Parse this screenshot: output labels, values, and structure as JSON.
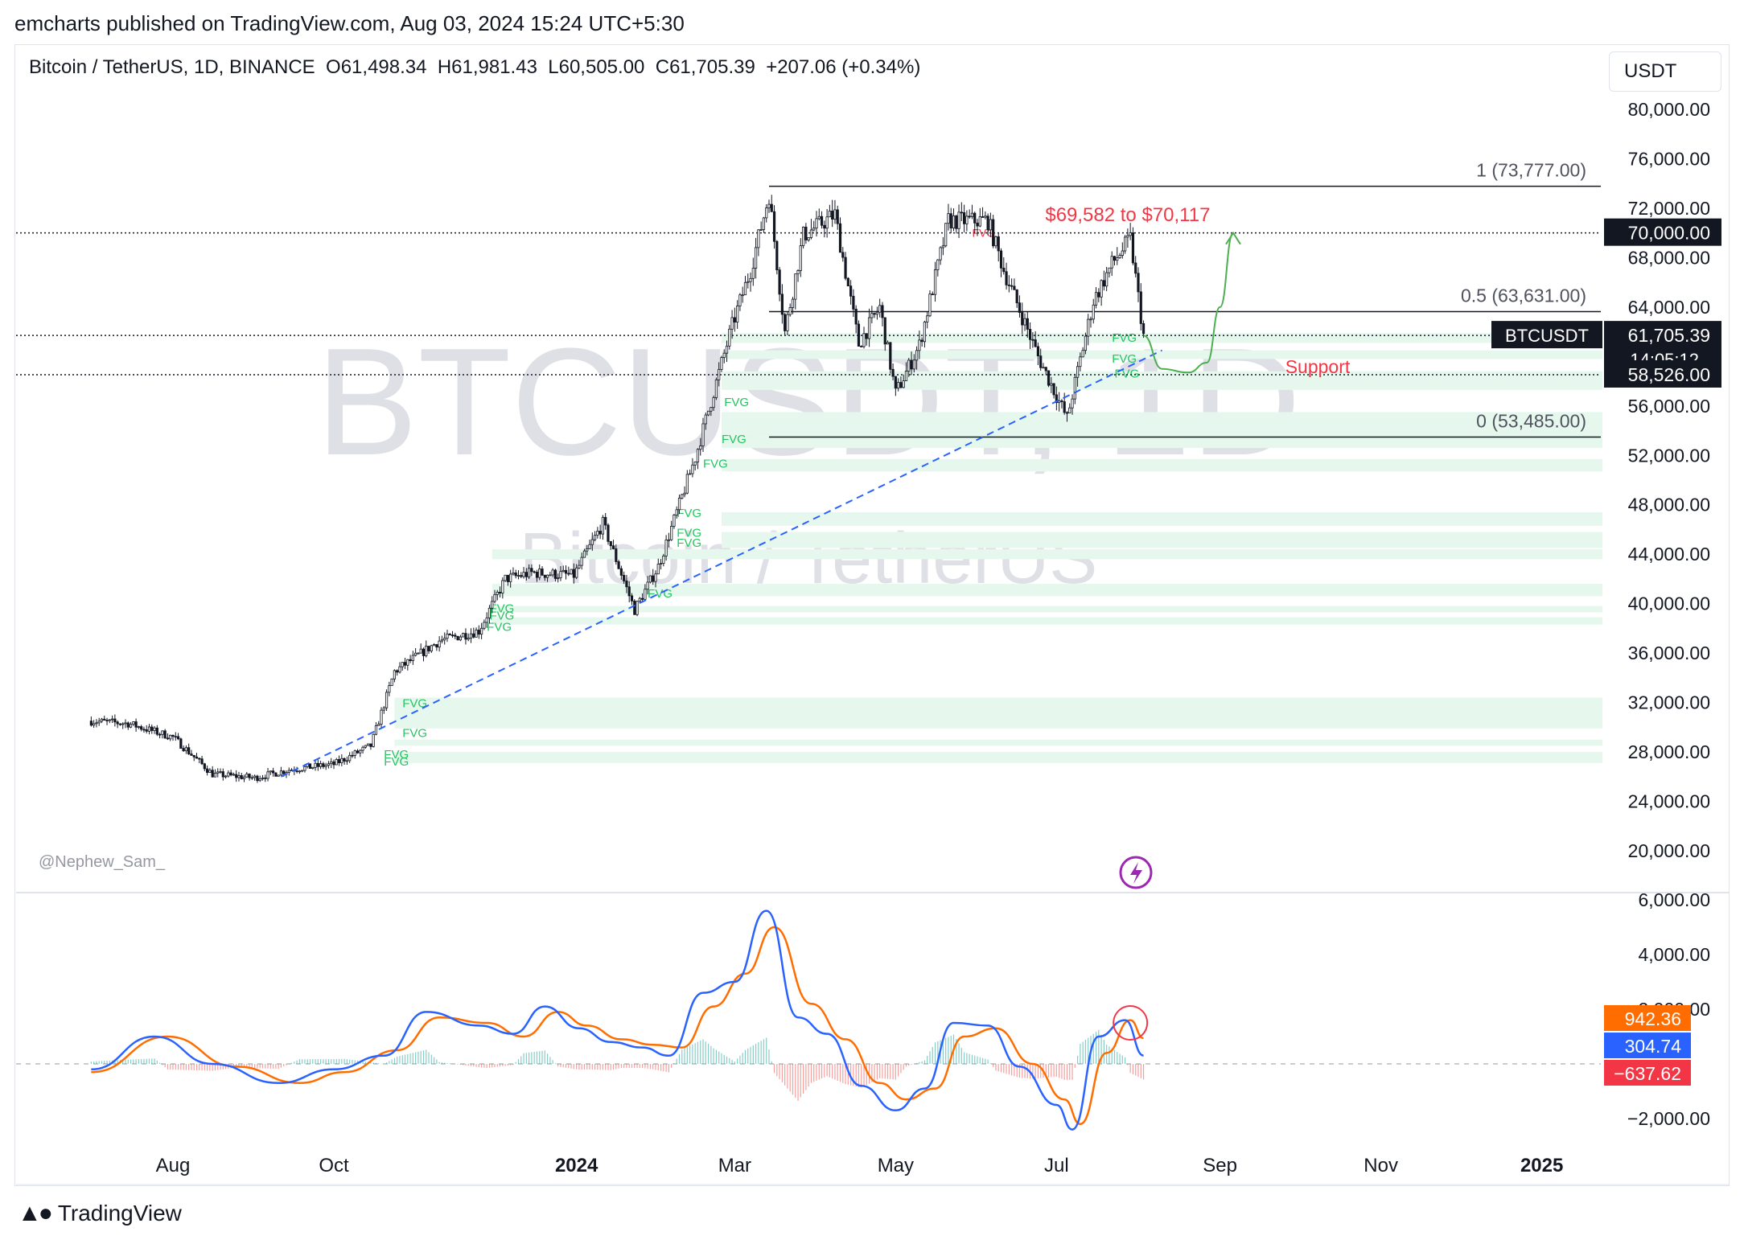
{
  "publisher": "emcharts published on TradingView.com, Aug 03, 2024 15:24 UTC+5:30",
  "header": {
    "symbol": "Bitcoin / TetherUS, 1D, BINANCE",
    "open": "O61,498.34",
    "high": "H61,981.43",
    "low": "L60,505.00",
    "close": "C61,705.39",
    "change": "+207.06 (+0.34%)"
  },
  "currency": "USDT",
  "watermark": {
    "line1": "BTCUSDT, 1D",
    "line2": "Bitcoin / TetherUS"
  },
  "author": "@Nephew_Sam_",
  "footer": {
    "brand": "TradingView"
  },
  "colors": {
    "up": "#089981",
    "down": "#f23645",
    "macd": "#2962ff",
    "signal": "#ff6d00",
    "fvg": "#e6f8ee",
    "fvg_text": "#22c55e",
    "trend": "#2962ff",
    "arrow": "#4caf50",
    "target": "#f23645"
  },
  "chart_data": [
    {
      "type": "candlestick",
      "title": "Bitcoin / TetherUS, 1D, BINANCE",
      "y_ticks": [
        "80,000.00",
        "76,000.00",
        "72,000.00",
        "68,000.00",
        "64,000.00",
        "56,000.00",
        "52,000.00",
        "48,000.00",
        "44,000.00",
        "40,000.00",
        "36,000.00",
        "32,000.00",
        "28,000.00",
        "24,000.00",
        "20,000.00"
      ],
      "ylim": [
        17000,
        81500
      ],
      "x_ticks": [
        "Aug",
        "Oct",
        "2024",
        "Mar",
        "May",
        "Jul",
        "Sep",
        "Nov",
        "2025"
      ],
      "x_tick_dates": [
        "2023-08-01",
        "2023-10-01",
        "2024-01-01",
        "2024-03-01",
        "2024-05-01",
        "2024-07-01",
        "2024-09-01",
        "2024-11-01",
        "2025-01-01"
      ],
      "series": [
        {
          "name": "BTCUSDT",
          "points": [
            [
              "2023-07-01",
              30500
            ],
            [
              "2023-07-15",
              30300
            ],
            [
              "2023-08-01",
              29200
            ],
            [
              "2023-08-16",
              26200
            ],
            [
              "2023-09-01",
              25900
            ],
            [
              "2023-09-15",
              26600
            ],
            [
              "2023-10-01",
              27000
            ],
            [
              "2023-10-15",
              28500
            ],
            [
              "2023-10-24",
              34500
            ],
            [
              "2023-11-10",
              37000
            ],
            [
              "2023-11-25",
              37800
            ],
            [
              "2023-12-05",
              42000
            ],
            [
              "2023-12-15",
              42500
            ],
            [
              "2023-12-31",
              42300
            ],
            [
              "2024-01-11",
              46500
            ],
            [
              "2024-01-23",
              39500
            ],
            [
              "2024-02-01",
              43000
            ],
            [
              "2024-02-15",
              51800
            ],
            [
              "2024-02-29",
              62500
            ],
            [
              "2024-03-07",
              67000
            ],
            [
              "2024-03-14",
              73100
            ],
            [
              "2024-03-20",
              62000
            ],
            [
              "2024-03-27",
              69800
            ],
            [
              "2024-04-08",
              71500
            ],
            [
              "2024-04-17",
              61000
            ],
            [
              "2024-04-25",
              64000
            ],
            [
              "2024-05-01",
              57000
            ],
            [
              "2024-05-10",
              60900
            ],
            [
              "2024-05-21",
              71000
            ],
            [
              "2024-06-05",
              71000
            ],
            [
              "2024-06-11",
              67000
            ],
            [
              "2024-06-24",
              60000
            ],
            [
              "2024-07-05",
              55000
            ],
            [
              "2024-07-15",
              64500
            ],
            [
              "2024-07-22",
              67500
            ],
            [
              "2024-07-29",
              69500
            ],
            [
              "2024-08-03",
              61705.39
            ]
          ]
        }
      ],
      "horizontal_levels": [
        {
          "label": "1 (73,777.00)",
          "value": 73777
        },
        {
          "label": "0.5 (63,631.00)",
          "value": 63631
        },
        {
          "label": "0 (53,485.00)",
          "value": 53485
        }
      ],
      "dotted_levels": [
        70000,
        61705.39,
        58526
      ],
      "price_tags": [
        {
          "text": "70,000.00",
          "value": 70000
        },
        {
          "symbol": "BTCUSDT",
          "text": "61,705.39",
          "countdown": "14:05:12",
          "value": 61705.39
        },
        {
          "text": "58,526.00",
          "value": 58526
        }
      ],
      "fvg_zones": [
        [
          61100,
          61900
        ],
        [
          59800,
          60500
        ],
        [
          57300,
          58800
        ],
        [
          53500,
          55500
        ],
        [
          52600,
          53500
        ],
        [
          50700,
          51700
        ],
        [
          46300,
          47400
        ],
        [
          44500,
          45800
        ],
        [
          43600,
          44400
        ],
        [
          40600,
          41600
        ],
        [
          39300,
          39800
        ],
        [
          38300,
          38900
        ],
        [
          29900,
          32400
        ],
        [
          28500,
          29000
        ],
        [
          27100,
          28000
        ]
      ],
      "fvg_label": "FVG",
      "annotations": {
        "target": "$69,582 to $70,117",
        "support": "Support",
        "projection": [
          [
            "2024-08-03",
            61700
          ],
          [
            "2024-08-10",
            59000
          ],
          [
            "2024-08-20",
            58700
          ],
          [
            "2024-08-27",
            59500
          ],
          [
            "2024-09-01",
            64000
          ],
          [
            "2024-09-06",
            70000
          ]
        ],
        "trendline": [
          [
            "2023-09-11",
            26000
          ],
          [
            "2024-08-10",
            60500
          ]
        ]
      }
    },
    {
      "type": "line",
      "title": "MACD",
      "y_ticks": [
        "6,000.00",
        "4,000.00",
        "2,000.00",
        "−2,000.00"
      ],
      "ylim": [
        -3200,
        6800
      ],
      "series": [
        {
          "name": "MACD",
          "points": [
            [
              "2023-07-01",
              -200
            ],
            [
              "2023-07-25",
              1000
            ],
            [
              "2023-08-16",
              0
            ],
            [
              "2023-09-10",
              -700
            ],
            [
              "2023-10-01",
              -200
            ],
            [
              "2023-10-20",
              300
            ],
            [
              "2023-11-05",
              1900
            ],
            [
              "2023-11-25",
              1400
            ],
            [
              "2023-12-08",
              1100
            ],
            [
              "2023-12-20",
              2100
            ],
            [
              "2024-01-02",
              1300
            ],
            [
              "2024-01-14",
              800
            ],
            [
              "2024-01-26",
              600
            ],
            [
              "2024-02-05",
              300
            ],
            [
              "2024-02-18",
              2600
            ],
            [
              "2024-03-01",
              3000
            ],
            [
              "2024-03-13",
              5600
            ],
            [
              "2024-03-25",
              1700
            ],
            [
              "2024-04-05",
              1100
            ],
            [
              "2024-04-18",
              -800
            ],
            [
              "2024-05-01",
              -1700
            ],
            [
              "2024-05-12",
              -900
            ],
            [
              "2024-05-23",
              1500
            ],
            [
              "2024-06-05",
              1400
            ],
            [
              "2024-06-17",
              -100
            ],
            [
              "2024-07-01",
              -1500
            ],
            [
              "2024-07-07",
              -2400
            ],
            [
              "2024-07-17",
              1000
            ],
            [
              "2024-07-27",
              1600
            ],
            [
              "2024-08-03",
              304.74
            ]
          ]
        },
        {
          "name": "Signal",
          "points": [
            [
              "2023-07-01",
              -300
            ],
            [
              "2023-07-30",
              1000
            ],
            [
              "2023-08-25",
              -100
            ],
            [
              "2023-09-18",
              -700
            ],
            [
              "2023-10-05",
              -300
            ],
            [
              "2023-10-25",
              500
            ],
            [
              "2023-11-10",
              1700
            ],
            [
              "2023-11-28",
              1500
            ],
            [
              "2023-12-12",
              1000
            ],
            [
              "2023-12-25",
              1900
            ],
            [
              "2024-01-05",
              1400
            ],
            [
              "2024-01-18",
              900
            ],
            [
              "2024-01-30",
              700
            ],
            [
              "2024-02-10",
              600
            ],
            [
              "2024-02-22",
              2100
            ],
            [
              "2024-03-05",
              3300
            ],
            [
              "2024-03-16",
              5000
            ],
            [
              "2024-03-30",
              2200
            ],
            [
              "2024-04-12",
              900
            ],
            [
              "2024-04-25",
              -700
            ],
            [
              "2024-05-05",
              -1300
            ],
            [
              "2024-05-16",
              -900
            ],
            [
              "2024-05-27",
              1000
            ],
            [
              "2024-06-08",
              1300
            ],
            [
              "2024-06-22",
              0
            ],
            [
              "2024-07-04",
              -1300
            ],
            [
              "2024-07-10",
              -2200
            ],
            [
              "2024-07-20",
              400
            ],
            [
              "2024-07-29",
              1600
            ],
            [
              "2024-08-03",
              942.36
            ]
          ]
        }
      ],
      "histogram_last": -637.62,
      "tags": [
        {
          "text": "942.36",
          "value": 942.36
        },
        {
          "text": "304.74",
          "value": 304.74
        },
        {
          "text": "−637.62",
          "value": -637.62
        }
      ]
    }
  ]
}
